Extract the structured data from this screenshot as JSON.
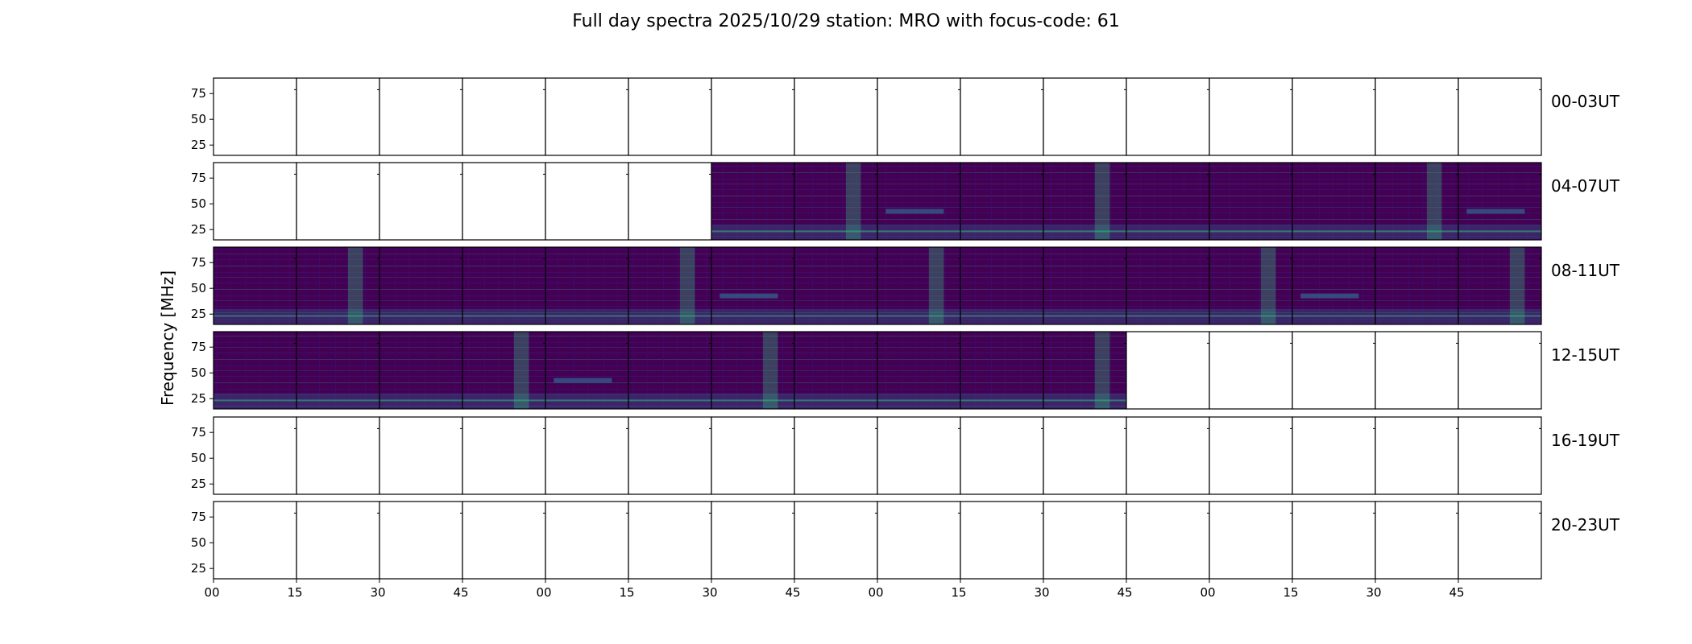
{
  "chart_data": {
    "type": "heatmap",
    "title": "Full day spectra 2025/10/29 station: MRO with focus-code: 61",
    "ylabel": "Frequency [MHz]",
    "ylim": [
      15,
      90
    ],
    "yticks": [
      25,
      50,
      75
    ],
    "xtick_labels": [
      "00",
      "15",
      "30",
      "45",
      "00",
      "15",
      "30",
      "45",
      "00",
      "15",
      "30",
      "45",
      "00",
      "15",
      "30",
      "45"
    ],
    "panels_per_row": 16,
    "rows": [
      {
        "label": "00-03UT",
        "filled": [
          0,
          0,
          0,
          0,
          0,
          0,
          0,
          0,
          0,
          0,
          0,
          0,
          0,
          0,
          0,
          0
        ]
      },
      {
        "label": "04-07UT",
        "filled": [
          0,
          0,
          0,
          0,
          0,
          0,
          1,
          1,
          1,
          1,
          1,
          1,
          1,
          1,
          1,
          1
        ]
      },
      {
        "label": "08-11UT",
        "filled": [
          1,
          1,
          1,
          1,
          1,
          1,
          1,
          1,
          1,
          1,
          1,
          1,
          1,
          1,
          1,
          1
        ]
      },
      {
        "label": "12-15UT",
        "filled": [
          1,
          1,
          1,
          1,
          1,
          1,
          1,
          1,
          1,
          1,
          1,
          0,
          0,
          0,
          0,
          0
        ]
      },
      {
        "label": "16-19UT",
        "filled": [
          0,
          0,
          0,
          0,
          0,
          0,
          0,
          0,
          0,
          0,
          0,
          0,
          0,
          0,
          0,
          0
        ]
      },
      {
        "label": "20-23UT",
        "filled": [
          0,
          0,
          0,
          0,
          0,
          0,
          0,
          0,
          0,
          0,
          0,
          0,
          0,
          0,
          0,
          0
        ]
      }
    ],
    "colormap": "viridis",
    "colors": {
      "background": "#440154",
      "low": "#3b0f70",
      "mid": "#31688e",
      "high": "#35b779",
      "peak": "#fde725"
    }
  }
}
